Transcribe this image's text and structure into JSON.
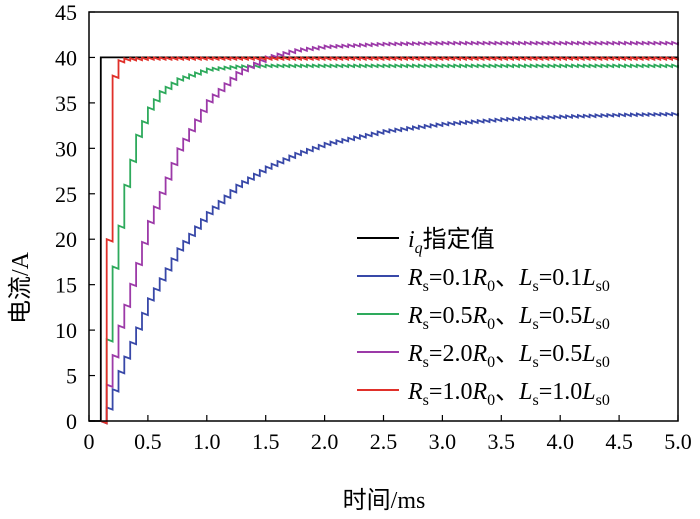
{
  "chart_data": {
    "type": "line",
    "xlabel": "时间/ms",
    "ylabel": "电流/A",
    "xlim": [
      0,
      5.0
    ],
    "ylim": [
      0,
      45
    ],
    "xticks": [
      "0",
      "0.5",
      "1.0",
      "1.5",
      "2.0",
      "2.5",
      "3.0",
      "3.5",
      "4.0",
      "4.5",
      "5.0"
    ],
    "yticks": [
      "0",
      "5",
      "10",
      "15",
      "20",
      "25",
      "30",
      "35",
      "40",
      "45"
    ],
    "grid": false,
    "legend_position": "bottom-right",
    "series": [
      {
        "name": "iq指定值",
        "legend_parts": {
          "i": "i",
          "q": "q",
          "rest": "指定值"
        },
        "color": "#000000",
        "x": [
          0,
          0.1,
          0.1,
          5.0
        ],
        "y": [
          0,
          0,
          40,
          40
        ]
      },
      {
        "name": "Rs=0.1R0、Ls=0.1Ls0",
        "legend_parts": {
          "r": "R",
          "rs": "s",
          "eq1": "=0.1",
          "r0": "R",
          "r0s": "0",
          "sep": "、",
          "l": "L",
          "ls": "s",
          "eq2": "=0.1",
          "l0": "L",
          "l0s": "s0"
        },
        "color": "#3848a8",
        "x": [
          0.1,
          0.15,
          0.25,
          0.5,
          0.75,
          1.0,
          1.25,
          1.5,
          1.75,
          2.0,
          2.5,
          3.0,
          3.5,
          4.0,
          4.5,
          5.0
        ],
        "y": [
          0,
          1.5,
          5.5,
          13.5,
          19.0,
          23.0,
          26.0,
          28.0,
          29.5,
          30.6,
          32.0,
          32.8,
          33.3,
          33.6,
          33.8,
          33.9
        ]
      },
      {
        "name": "Rs=0.5R0、Ls=0.5Ls0",
        "legend_parts": {
          "r": "R",
          "rs": "s",
          "eq1": "=0.5",
          "r0": "R",
          "r0s": "0",
          "sep": "、",
          "l": "L",
          "ls": "s",
          "eq2": "=0.5",
          "l0": "L",
          "l0s": "s0"
        },
        "color": "#2eaa5c",
        "x": [
          0.1,
          0.15,
          0.2,
          0.3,
          0.4,
          0.5,
          0.6,
          0.75,
          1.0,
          1.25,
          1.5,
          2.0,
          3.0,
          4.0,
          5.0
        ],
        "y": [
          0,
          9.0,
          17.0,
          26.0,
          31.5,
          34.5,
          36.3,
          37.7,
          38.8,
          39.1,
          39.2,
          39.2,
          39.2,
          39.2,
          39.2
        ]
      },
      {
        "name": "Rs=2.0R0、Ls=0.5Ls0",
        "legend_parts": {
          "r": "R",
          "rs": "s",
          "eq1": "=2.0",
          "r0": "R",
          "r0s": "0",
          "sep": "、",
          "l": "L",
          "ls": "s",
          "eq2": "=0.5",
          "l0": "L",
          "l0s": "s0"
        },
        "color": "#9c3aa8",
        "x": [
          0.1,
          0.15,
          0.25,
          0.5,
          0.75,
          1.0,
          1.25,
          1.5,
          1.75,
          2.0,
          2.5,
          3.0,
          3.5,
          4.0,
          4.5,
          5.0
        ],
        "y": [
          0,
          4.0,
          10.5,
          22.0,
          30.0,
          35.3,
          38.4,
          40.1,
          40.9,
          41.3,
          41.6,
          41.7,
          41.7,
          41.7,
          41.7,
          41.7
        ]
      },
      {
        "name": "Rs=1.0R0、Ls=1.0Ls0",
        "legend_parts": {
          "r": "R",
          "rs": "s",
          "eq1": "=1.0",
          "r0": "R",
          "r0s": "0",
          "sep": "、",
          "l": "L",
          "ls": "s",
          "eq2": "=1.0",
          "l0": "L",
          "l0s": "s0"
        },
        "color": "#e0302a",
        "x": [
          0.1,
          0.15,
          0.2,
          0.25,
          0.3,
          0.5,
          1.0,
          2.0,
          3.0,
          4.0,
          5.0
        ],
        "y": [
          0,
          20.0,
          38.0,
          39.7,
          39.9,
          40.0,
          40.0,
          40.0,
          40.0,
          40.0,
          40.0
        ]
      }
    ]
  }
}
